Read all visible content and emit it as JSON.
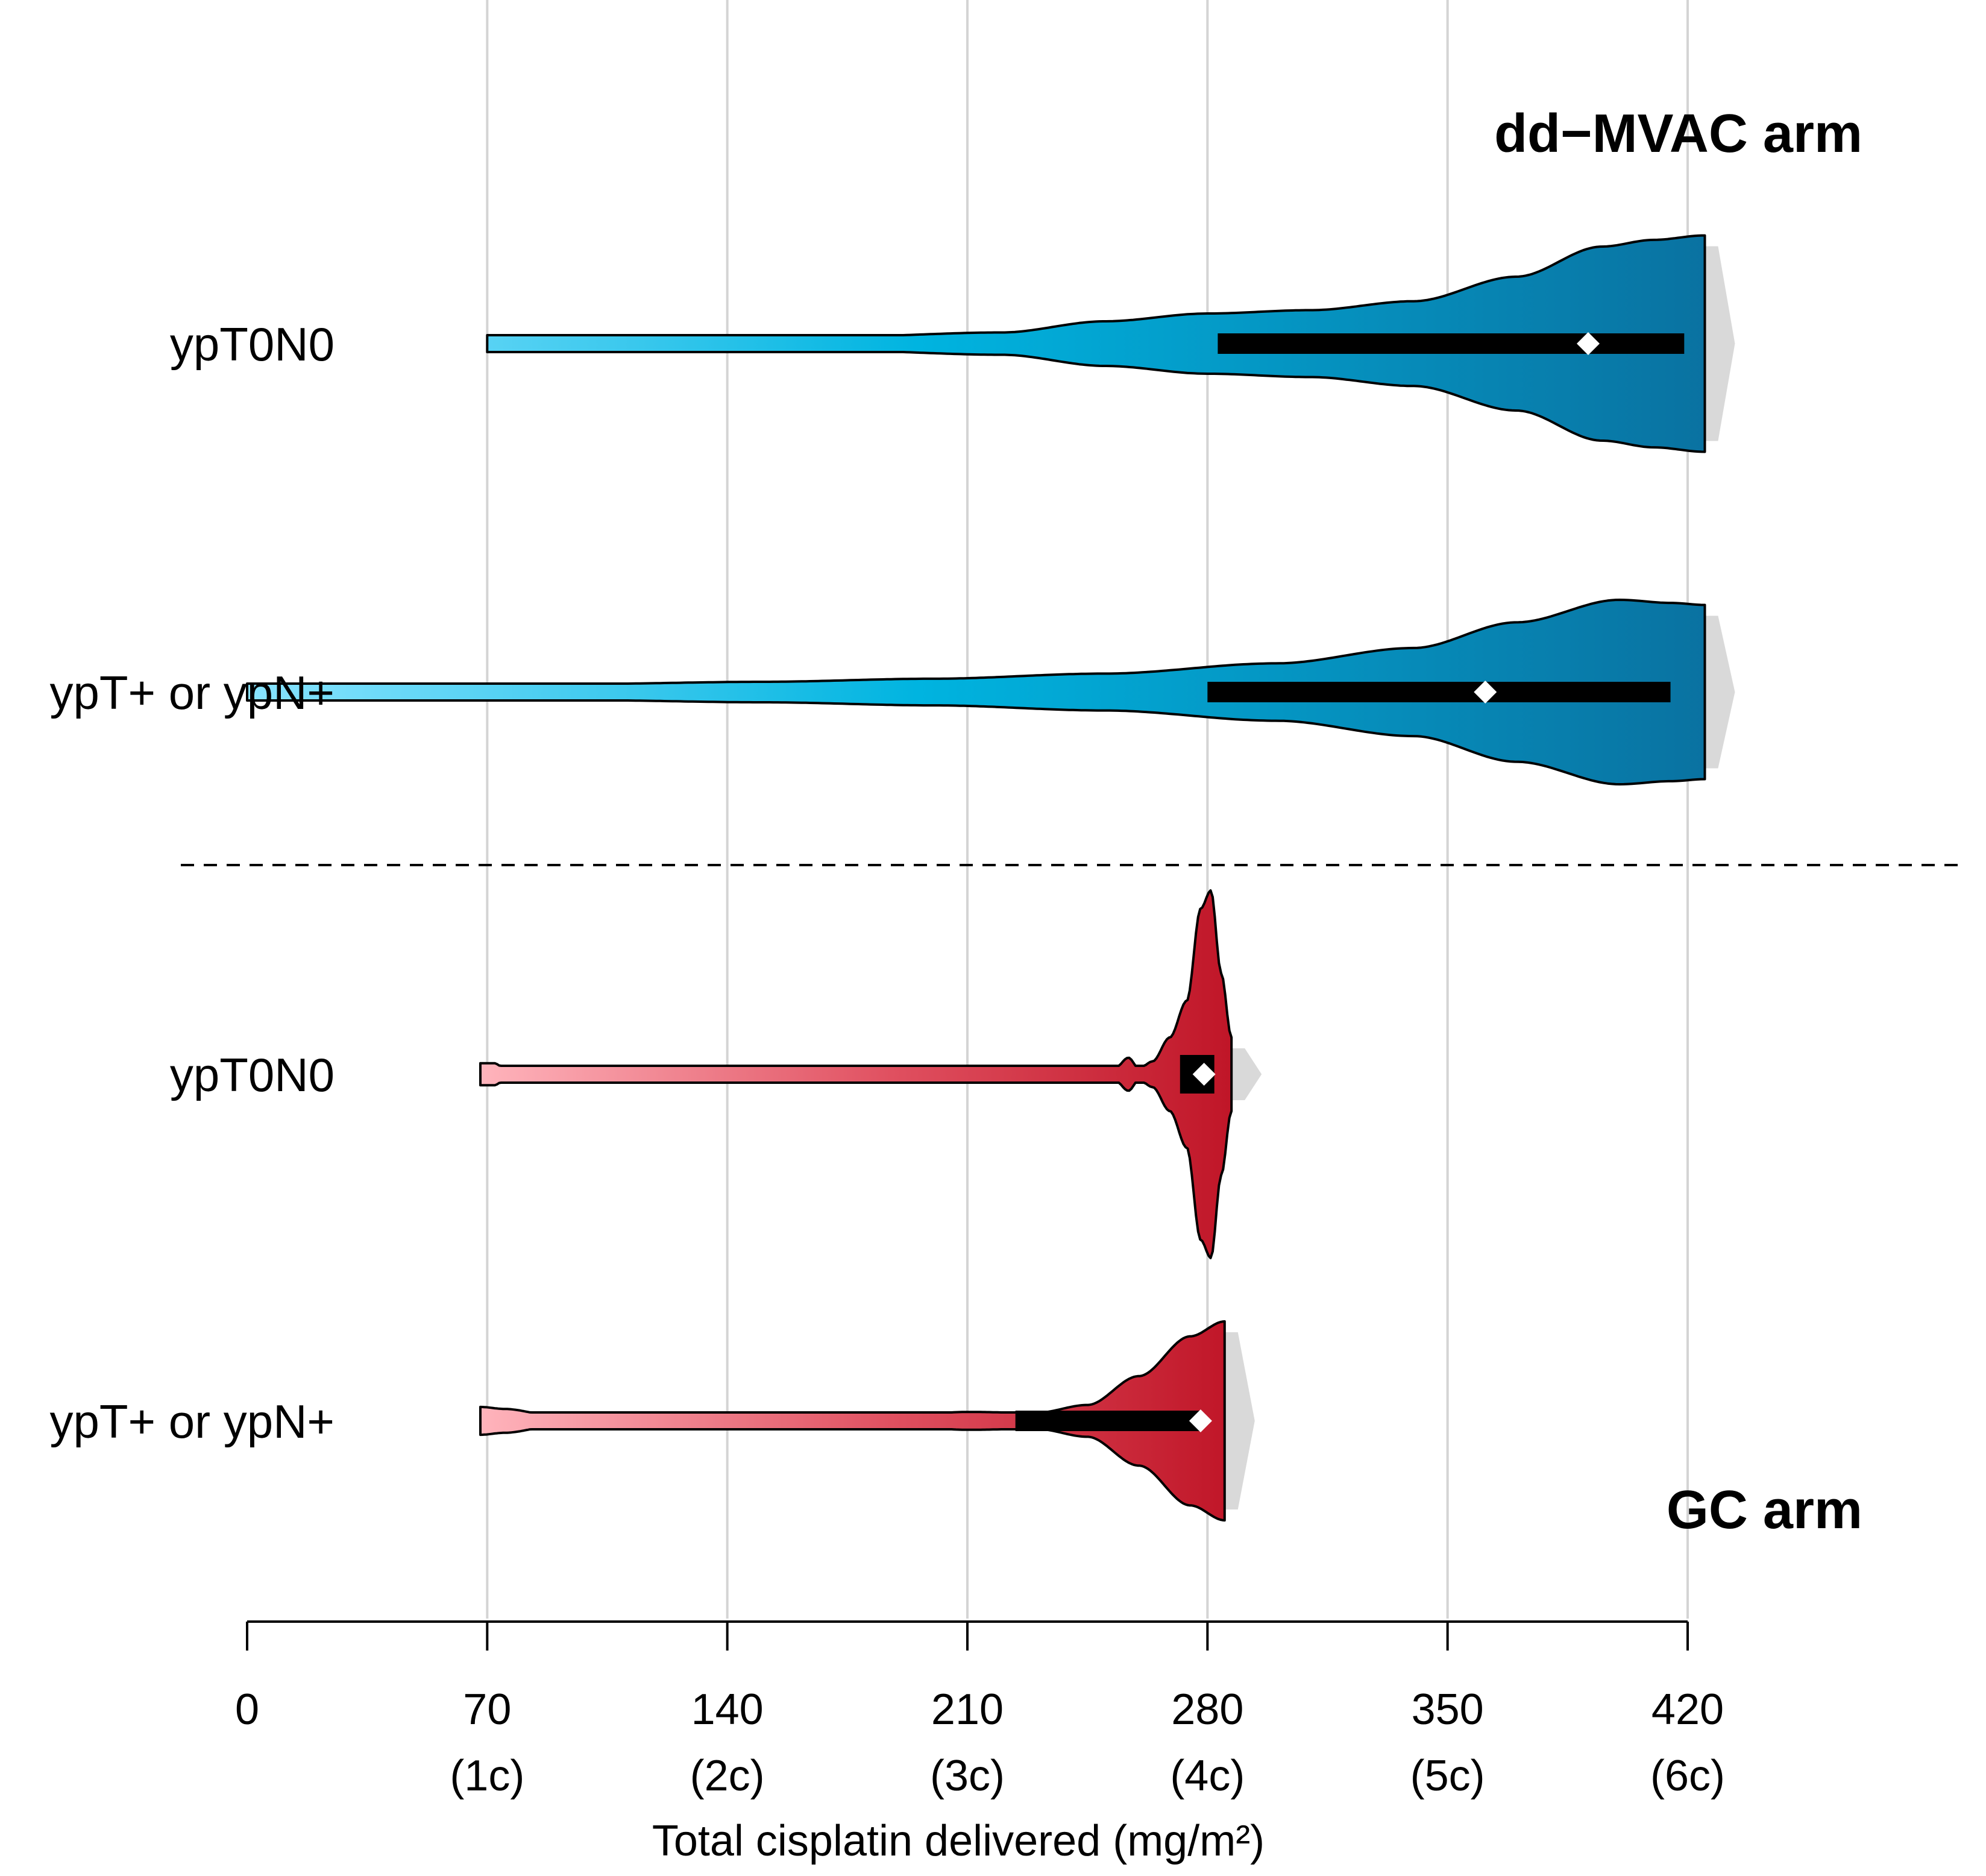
{
  "chart_data": {
    "type": "violin",
    "orientation": "horizontal",
    "xlabel": "Total cisplatin delivered (mg/m²)",
    "xlim": [
      0,
      420
    ],
    "ticks": [
      {
        "value": 0,
        "label": "0",
        "sub": ""
      },
      {
        "value": 70,
        "label": "70",
        "sub": "(1c)"
      },
      {
        "value": 140,
        "label": "140",
        "sub": "(2c)"
      },
      {
        "value": 210,
        "label": "210",
        "sub": "(3c)"
      },
      {
        "value": 280,
        "label": "280",
        "sub": "(4c)"
      },
      {
        "value": 350,
        "label": "350",
        "sub": "(5c)"
      },
      {
        "value": 420,
        "label": "420",
        "sub": "(6c)"
      }
    ],
    "arms": [
      {
        "name": "dd−MVAC arm",
        "color": "#0e7fae",
        "light_color": "#8ae4ff",
        "mid_color": "#00b4e0",
        "dark_color": "#0a6f9e",
        "groups": [
          {
            "label": "ypT0N0",
            "min": 70,
            "max": 425,
            "q1": 283,
            "q3": 419,
            "mean": 391,
            "density": [
              [
                70,
                0.05
              ],
              [
                120,
                0.05
              ],
              [
                170,
                0.06
              ],
              [
                220,
                0.1
              ],
              [
                250,
                0.2
              ],
              [
                280,
                0.27
              ],
              [
                310,
                0.3
              ],
              [
                340,
                0.38
              ],
              [
                370,
                0.6
              ],
              [
                395,
                0.87
              ],
              [
                410,
                0.93
              ],
              [
                425,
                0.97
              ]
            ]
          },
          {
            "label": "ypT+ or ypN+",
            "min": 0,
            "max": 425,
            "q1": 280,
            "q3": 415,
            "mean": 361,
            "density": [
              [
                0,
                0.04
              ],
              [
                50,
                0.05
              ],
              [
                100,
                0.08
              ],
              [
                150,
                0.1
              ],
              [
                200,
                0.13
              ],
              [
                250,
                0.18
              ],
              [
                300,
                0.28
              ],
              [
                340,
                0.43
              ],
              [
                370,
                0.68
              ],
              [
                400,
                0.9
              ],
              [
                415,
                0.87
              ],
              [
                425,
                0.85
              ]
            ]
          }
        ]
      },
      {
        "name": "GC arm",
        "color": "#c9172b",
        "light_color": "#ffb5bd",
        "mid_color": "#e05060",
        "dark_color": "#c01628",
        "groups": [
          {
            "label": "ypT0N0",
            "min": 68,
            "max": 287,
            "q1": 272,
            "q3": 282,
            "mean": 279,
            "density": [
              [
                68,
                0.06
              ],
              [
                72,
                0.06
              ],
              [
                76,
                0.02
              ],
              [
                80,
                0.01
              ],
              [
                125,
                0.01
              ],
              [
                130,
                0.03
              ],
              [
                134,
                0.01
              ],
              [
                160,
                0.01
              ],
              [
                170,
                0.04
              ],
              [
                178,
                0.01
              ],
              [
                204,
                0.01
              ],
              [
                208,
                0.03
              ],
              [
                212,
                0.01
              ],
              [
                222,
                0.01
              ],
              [
                226,
                0.03
              ],
              [
                230,
                0.01
              ],
              [
                244,
                0.01
              ],
              [
                248,
                0.03
              ],
              [
                252,
                0.01
              ],
              [
                257,
                0.09
              ],
              [
                260,
                0.03
              ],
              [
                264,
                0.07
              ],
              [
                269,
                0.2
              ],
              [
                274,
                0.4
              ],
              [
                278,
                0.9
              ],
              [
                281,
                1.0
              ],
              [
                284,
                0.55
              ],
              [
                287,
                0.2
              ]
            ]
          },
          {
            "label": "ypT+ or ypN+",
            "min": 68,
            "max": 285,
            "q1": 224,
            "q3": 278,
            "mean": 278,
            "density": [
              [
                68,
                0.14
              ],
              [
                75,
                0.12
              ],
              [
                90,
                0.05
              ],
              [
                110,
                0.03
              ],
              [
                150,
                0.04
              ],
              [
                190,
                0.05
              ],
              [
                210,
                0.09
              ],
              [
                230,
                0.08
              ],
              [
                245,
                0.16
              ],
              [
                260,
                0.45
              ],
              [
                275,
                0.85
              ],
              [
                285,
                1.0
              ]
            ]
          }
        ]
      }
    ]
  }
}
